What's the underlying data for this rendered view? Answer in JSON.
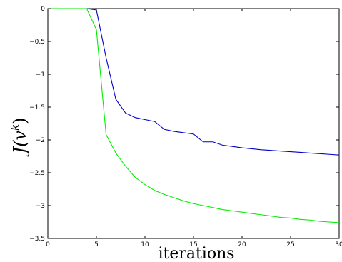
{
  "chart_data": {
    "type": "line",
    "title": "",
    "xlabel": "iterations",
    "ylabel": {
      "base": "J(v",
      "sup": "k",
      "close": ")"
    },
    "xlim": [
      0,
      30
    ],
    "ylim": [
      -3.5,
      0
    ],
    "xticks": [
      0,
      5,
      10,
      15,
      20,
      25,
      30
    ],
    "xtick_labels": [
      "0",
      "5",
      "10",
      "15",
      "20",
      "25",
      "30"
    ],
    "yticks": [
      0,
      -0.5,
      -1,
      -1.5,
      -2,
      -2.5,
      -3,
      -3.5
    ],
    "ytick_labels": [
      "0",
      "−0.5",
      "−1",
      "−1.5",
      "−2",
      "−2.5",
      "−3",
      "−3.5"
    ],
    "grid": false,
    "legend": "none",
    "series": [
      {
        "color": "#0000cc",
        "x": [
          0,
          1,
          2,
          3,
          4,
          5,
          6,
          7,
          8,
          9,
          10,
          11,
          12,
          13,
          14,
          15,
          16,
          17,
          18,
          19,
          20,
          21,
          22,
          23,
          24,
          25,
          26,
          27,
          28,
          29,
          30
        ],
        "y": [
          0,
          0,
          0,
          0,
          0,
          -0.02,
          -0.75,
          -1.38,
          -1.59,
          -1.66,
          -1.69,
          -1.72,
          -1.84,
          -1.87,
          -1.89,
          -1.91,
          -2.03,
          -2.03,
          -2.08,
          -2.1,
          -2.12,
          -2.135,
          -2.15,
          -2.16,
          -2.17,
          -2.18,
          -2.19,
          -2.2,
          -2.21,
          -2.22,
          -2.23
        ]
      },
      {
        "color": "#00ee00",
        "x": [
          0,
          1,
          2,
          3,
          4,
          5,
          6,
          7,
          8,
          9,
          10,
          11,
          12,
          13,
          14,
          15,
          16,
          17,
          18,
          19,
          20,
          21,
          22,
          23,
          24,
          25,
          26,
          27,
          28,
          29,
          30
        ],
        "y": [
          0,
          0,
          0,
          0,
          0,
          -0.32,
          -1.92,
          -2.2,
          -2.4,
          -2.57,
          -2.68,
          -2.77,
          -2.83,
          -2.88,
          -2.93,
          -2.97,
          -3.0,
          -3.03,
          -3.06,
          -3.08,
          -3.1,
          -3.12,
          -3.14,
          -3.16,
          -3.18,
          -3.19,
          -3.21,
          -3.22,
          -3.24,
          -3.25,
          -3.26
        ]
      }
    ]
  }
}
